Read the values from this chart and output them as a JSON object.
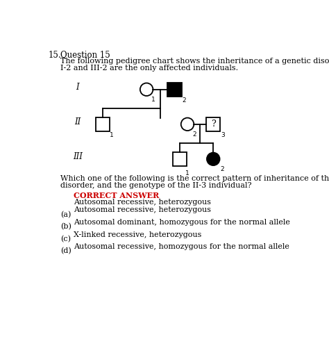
{
  "title_number": "15.",
  "title_question": "Question 15",
  "description_line1": "The following pedigree chart shows the inheritance of a genetic disorder.",
  "description_line2": "I-2 and III-2 are the only affected individuals.",
  "question_line1": "Which one of the following is the correct pattern of inheritance of the",
  "question_line2": "disorder, and the genotype of the II-3 individual?",
  "correct_answer_label": "CORRECT ANSWER",
  "correct_answer_text": "Autosomal recessive, heterozygous",
  "option_a_label": "(a)",
  "option_a_text": "Autosomal recessive, heterozygous",
  "option_b_label": "(b)",
  "option_b_text": "Autosomal dominant, homozygous for the normal allele",
  "option_c_label": "(c)",
  "option_c_text": "X-linked recessive, heterozygous",
  "option_d_label": "(d)",
  "option_d_text": "Autosomal recessive, homozygous for the normal allele",
  "bg_color": "#ffffff",
  "text_color": "#000000",
  "correct_answer_color": "#cc0000"
}
